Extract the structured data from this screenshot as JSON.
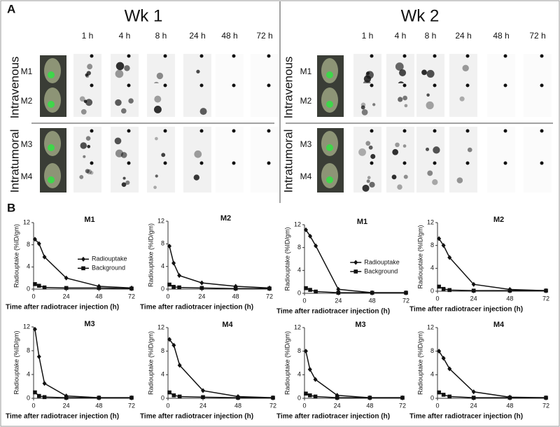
{
  "panel_labels": [
    "A",
    "B"
  ],
  "panel_a": [
    {
      "title": "Wk 1",
      "times": [
        "1 h",
        "4 h",
        "8 h",
        "24 h",
        "48 h",
        "72 h"
      ],
      "routes": [
        "Intravenous",
        "Intratumoral"
      ],
      "mice": [
        "M1",
        "M2",
        "M3",
        "M4"
      ]
    },
    {
      "title": "Wk 2",
      "times": [
        "1 h",
        "4 h",
        "8 h",
        "24 h",
        "48 h",
        "72 h"
      ],
      "routes": [
        "Intravenous",
        "Intratumoral"
      ],
      "mice": [
        "M1",
        "M2",
        "M3",
        "M4"
      ]
    }
  ],
  "chart_data": [
    {
      "type": "line",
      "title": "M1",
      "x_label": "Time after radiotracer injection (h)",
      "y_label": "Radiouptake (%ID/gm)",
      "x": [
        1,
        4,
        8,
        24,
        48,
        72
      ],
      "xlim": [
        0,
        72
      ],
      "xticks": [
        0,
        24,
        48,
        72
      ],
      "ylim": [
        0,
        12
      ],
      "yticks": [
        0,
        4,
        8,
        12
      ],
      "legend": "center right",
      "series": [
        {
          "name": "Radiouptake",
          "color": "#111111",
          "marker": "diamond",
          "values": [
            9,
            8.2,
            5.8,
            2,
            0.5,
            0.2
          ]
        },
        {
          "name": "Background",
          "color": "#111111",
          "marker": "square",
          "values": [
            0.9,
            0.6,
            0.3,
            0.2,
            0.2,
            0.1
          ]
        }
      ]
    },
    {
      "type": "line",
      "title": "M2",
      "x_label": "Time after radiotracer injection (h)",
      "y_label": "Radiouptake (%ID/gm)",
      "x": [
        1,
        4,
        8,
        24,
        48,
        72
      ],
      "xlim": [
        0,
        72
      ],
      "xticks": [
        0,
        24,
        48,
        72
      ],
      "ylim": [
        0,
        12
      ],
      "yticks": [
        0,
        4,
        8,
        12
      ],
      "series": [
        {
          "color": "#111111",
          "marker": "diamond",
          "values": [
            7.6,
            4.6,
            2.4,
            1.1,
            0.5,
            0.2
          ]
        },
        {
          "color": "#111111",
          "marker": "square",
          "values": [
            0.8,
            0.4,
            0.3,
            0.2,
            0.1,
            0.1
          ]
        }
      ]
    },
    {
      "type": "line",
      "title": "M3",
      "x_label": "Time after radiotracer injection (h)",
      "y_label": "Radiouptake (%ID/gm)",
      "x": [
        1,
        4,
        8,
        24,
        48,
        72
      ],
      "xlim": [
        0,
        72
      ],
      "xticks": [
        0,
        24,
        48,
        72
      ],
      "ylim": [
        0,
        12
      ],
      "yticks": [
        0,
        4,
        8,
        12
      ],
      "series": [
        {
          "color": "#111111",
          "marker": "diamond",
          "values": [
            11.6,
            7,
            2.5,
            0.4,
            0.1,
            0.1
          ]
        },
        {
          "color": "#111111",
          "marker": "square",
          "values": [
            1,
            0.4,
            0.2,
            0.1,
            0.1,
            0.1
          ]
        }
      ]
    },
    {
      "type": "line",
      "title": "M4",
      "x_label": "Time after radiotracer injection (h)",
      "y_label": "Radiouptake (%ID/gm)",
      "x": [
        1,
        4,
        8,
        24,
        48,
        72
      ],
      "xlim": [
        0,
        72
      ],
      "xticks": [
        0,
        24,
        48,
        72
      ],
      "ylim": [
        0,
        12
      ],
      "yticks": [
        0,
        4,
        8,
        12
      ],
      "series": [
        {
          "color": "#111111",
          "marker": "diamond",
          "values": [
            10,
            9,
            5.6,
            1.3,
            0.3,
            0.1
          ]
        },
        {
          "color": "#111111",
          "marker": "square",
          "values": [
            1,
            0.5,
            0.3,
            0.2,
            0.1,
            0.1
          ]
        }
      ]
    },
    {
      "type": "line",
      "title": "M1",
      "x_label": "Time after radiotracer injection (h)",
      "y_label": "Radiouptake (%ID/gm)",
      "x": [
        1,
        4,
        8,
        24,
        48,
        72
      ],
      "xlim": [
        0,
        72
      ],
      "xticks": [
        0,
        24,
        48,
        72
      ],
      "ylim": [
        0,
        12
      ],
      "yticks": [
        0,
        4,
        8,
        12
      ],
      "legend": "center right",
      "series": [
        {
          "name": "Radiouptake",
          "color": "#111111",
          "marker": "diamond",
          "values": [
            11.1,
            10,
            8.3,
            0.7,
            0.1,
            0.1
          ]
        },
        {
          "name": "Background",
          "color": "#111111",
          "marker": "square",
          "values": [
            0.9,
            0.6,
            0.3,
            0.1,
            0.1,
            0.1
          ]
        }
      ]
    },
    {
      "type": "line",
      "title": "M2",
      "x_label": "Time after radiotracer injection (h)",
      "y_label": "Radiouptake (%ID/gm)",
      "x": [
        1,
        4,
        8,
        24,
        48,
        72
      ],
      "xlim": [
        0,
        72
      ],
      "xticks": [
        0,
        24,
        48,
        72
      ],
      "ylim": [
        0,
        12
      ],
      "yticks": [
        0,
        4,
        8,
        12
      ],
      "series": [
        {
          "color": "#111111",
          "marker": "diamond",
          "values": [
            9.2,
            8,
            5.9,
            1.2,
            0.3,
            0.1
          ]
        },
        {
          "color": "#111111",
          "marker": "square",
          "values": [
            0.8,
            0.4,
            0.2,
            0.1,
            0.1,
            0.1
          ]
        }
      ]
    },
    {
      "type": "line",
      "title": "M3",
      "x_label": "Time after radiotracer injection (h)",
      "y_label": "Radiouptake (%ID/gm)",
      "x": [
        1,
        4,
        8,
        24,
        48,
        72
      ],
      "xlim": [
        0,
        72
      ],
      "xticks": [
        0,
        24,
        48,
        72
      ],
      "ylim": [
        0,
        12
      ],
      "yticks": [
        0,
        4,
        8,
        12
      ],
      "series": [
        {
          "color": "#111111",
          "marker": "diamond",
          "values": [
            8,
            4.9,
            3.2,
            0.5,
            0.1,
            0.1
          ]
        },
        {
          "color": "#111111",
          "marker": "square",
          "values": [
            0.8,
            0.5,
            0.3,
            0.1,
            0.1,
            0.1
          ]
        }
      ]
    },
    {
      "type": "line",
      "title": "M4",
      "x_label": "Time after radiotracer injection (h)",
      "y_label": "Radiouptake (%ID/gm)",
      "x": [
        1,
        4,
        8,
        24,
        48,
        72
      ],
      "xlim": [
        0,
        72
      ],
      "xticks": [
        0,
        24,
        48,
        72
      ],
      "ylim": [
        0,
        12
      ],
      "yticks": [
        0,
        4,
        8,
        12
      ],
      "series": [
        {
          "color": "#111111",
          "marker": "diamond",
          "values": [
            8,
            6.8,
            5,
            1.1,
            0.2,
            0.1
          ]
        },
        {
          "color": "#111111",
          "marker": "square",
          "values": [
            1,
            0.6,
            0.3,
            0.1,
            0.1,
            0.1
          ]
        }
      ]
    }
  ]
}
